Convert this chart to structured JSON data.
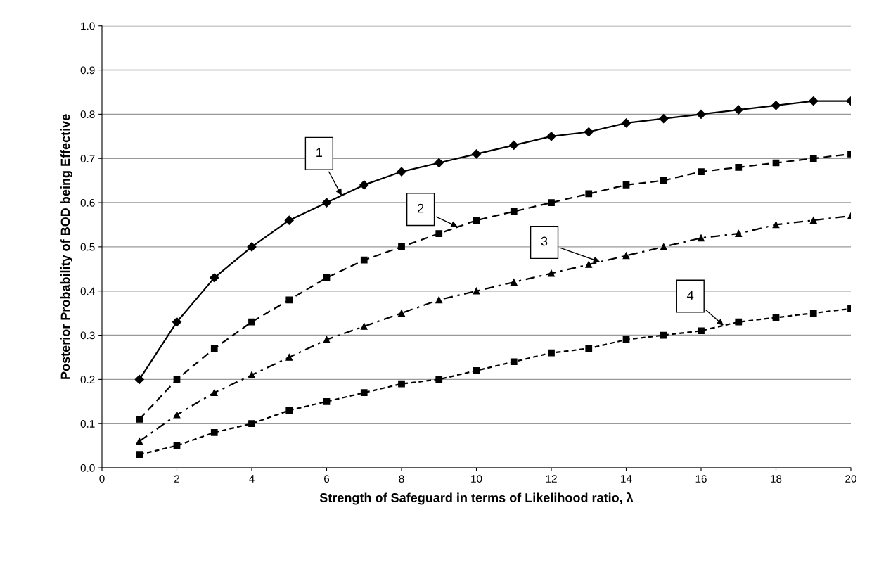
{
  "chart_data": {
    "type": "line",
    "xlabel": "Strength of Safeguard in terms of Likelihood ratio, λ",
    "ylabel": "Posterior Probability of BOD being Effective",
    "x": [
      1,
      2,
      3,
      4,
      5,
      6,
      7,
      8,
      9,
      10,
      11,
      12,
      13,
      14,
      15,
      16,
      17,
      18,
      19,
      20
    ],
    "series": [
      {
        "color": "#000000",
        "marker": "diamond",
        "line_style": "solid",
        "values": [
          0.2,
          0.33,
          0.43,
          0.5,
          0.56,
          0.6,
          0.64,
          0.67,
          0.69,
          0.71,
          0.73,
          0.75,
          0.76,
          0.78,
          0.79,
          0.8,
          0.81,
          0.82,
          0.83,
          0.83
        ]
      },
      {
        "color": "#000000",
        "marker": "square",
        "line_style": "dashed",
        "values": [
          0.11,
          0.2,
          0.27,
          0.33,
          0.38,
          0.43,
          0.47,
          0.5,
          0.53,
          0.56,
          0.58,
          0.6,
          0.62,
          0.64,
          0.65,
          0.67,
          0.68,
          0.69,
          0.7,
          0.71
        ]
      },
      {
        "color": "#000000",
        "marker": "triangle",
        "line_style": "dashdot",
        "values": [
          0.06,
          0.12,
          0.17,
          0.21,
          0.25,
          0.29,
          0.32,
          0.35,
          0.38,
          0.4,
          0.42,
          0.44,
          0.46,
          0.48,
          0.5,
          0.52,
          0.53,
          0.55,
          0.56,
          0.57
        ]
      },
      {
        "color": "#000000",
        "marker": "square",
        "line_style": "dotted",
        "values": [
          0.03,
          0.05,
          0.08,
          0.1,
          0.13,
          0.15,
          0.17,
          0.19,
          0.2,
          0.22,
          0.24,
          0.26,
          0.27,
          0.29,
          0.3,
          0.31,
          0.33,
          0.34,
          0.35,
          0.36
        ]
      }
    ],
    "xlim": [
      0,
      20
    ],
    "xticks": [
      0,
      2,
      4,
      6,
      8,
      10,
      12,
      14,
      16,
      18,
      20
    ],
    "ylim": [
      0,
      1
    ],
    "yticks": [
      {
        "value": 0,
        "label": "0.0"
      },
      {
        "value": 0.1,
        "label": "0.1"
      },
      {
        "value": 0.2,
        "label": "0.2"
      },
      {
        "value": 0.3,
        "label": "0.3"
      },
      {
        "value": 0.4,
        "label": "0.4"
      },
      {
        "value": 0.5,
        "label": "0.5"
      },
      {
        "value": 0.6,
        "label": "0.6"
      },
      {
        "value": 0.7,
        "label": "0.7"
      },
      {
        "value": 0.8,
        "label": "0.8"
      },
      {
        "value": 0.9,
        "label": "0.9"
      },
      {
        "value": 1,
        "label": "1.0"
      }
    ],
    "grid": "y",
    "legend": false,
    "annotations": [
      {
        "text": "1",
        "x": 6.4,
        "y": 0.616
      },
      {
        "text": "2",
        "x": 9.5,
        "y": 0.545
      },
      {
        "text": "3",
        "x": 13.3,
        "y": 0.466
      },
      {
        "text": "4",
        "x": 16.6,
        "y": 0.322
      }
    ]
  }
}
